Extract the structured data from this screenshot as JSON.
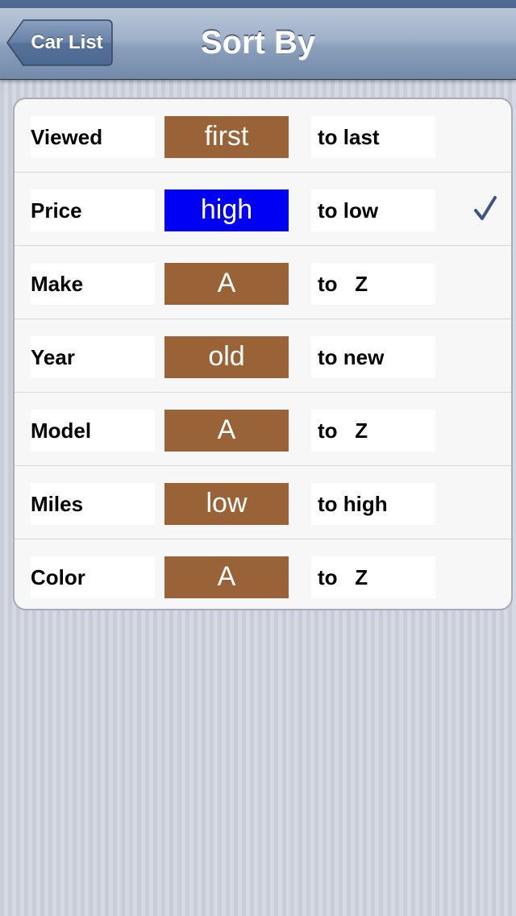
{
  "nav": {
    "title": "Sort By",
    "back_label": "Car List"
  },
  "colors": {
    "selected_button": "#0000f5",
    "button": "#9a6337",
    "checkmark": "#3d5485"
  },
  "rows": [
    {
      "field": "Viewed",
      "from": "first",
      "to": "to last",
      "selected": false
    },
    {
      "field": "Price",
      "from": "high",
      "to": "to low",
      "selected": true
    },
    {
      "field": "Make",
      "from": "A",
      "to": "to   Z",
      "selected": false
    },
    {
      "field": "Year",
      "from": "old",
      "to": "to new",
      "selected": false
    },
    {
      "field": "Model",
      "from": "A",
      "to": "to   Z",
      "selected": false
    },
    {
      "field": "Miles",
      "from": "low",
      "to": "to high",
      "selected": false
    },
    {
      "field": "Color",
      "from": "A",
      "to": "to   Z",
      "selected": false
    }
  ],
  "icons": {
    "selected_indicator": "checkmark-icon",
    "back": "back-arrow-icon"
  }
}
